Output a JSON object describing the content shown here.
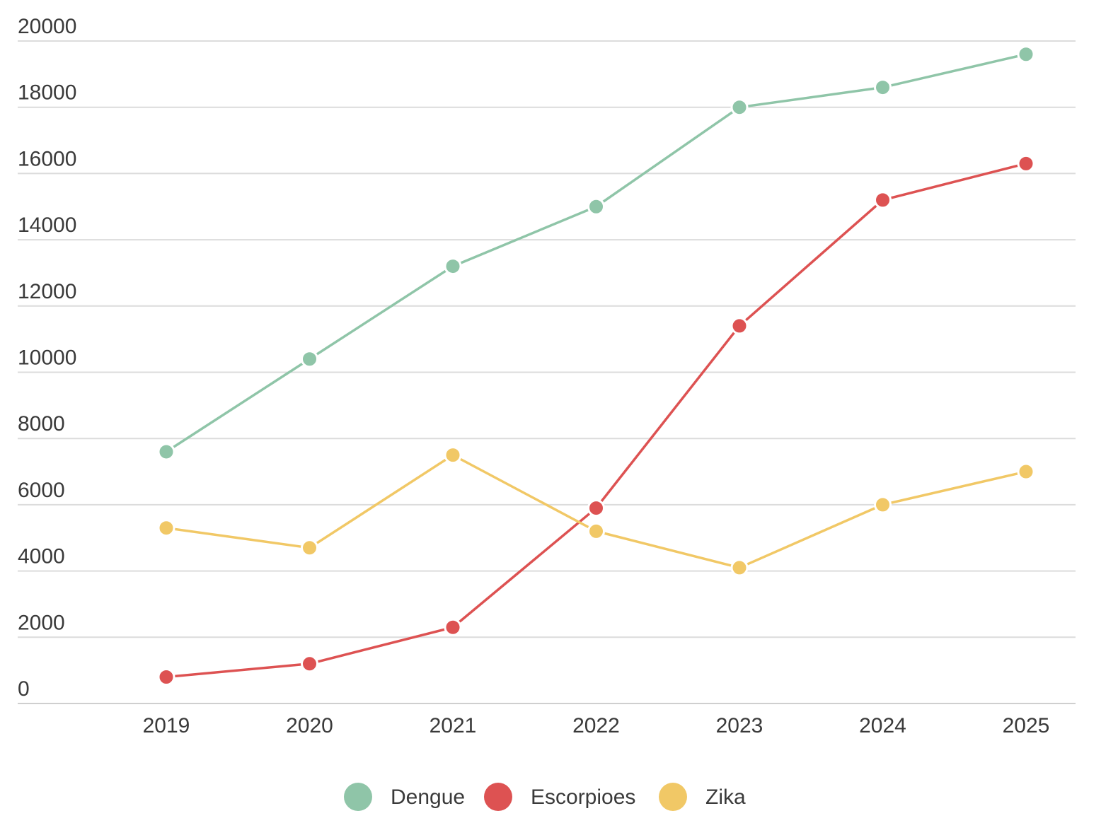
{
  "chart_data": {
    "type": "line",
    "title": "",
    "xlabel": "",
    "ylabel": "",
    "categories": [
      "2019",
      "2020",
      "2021",
      "2022",
      "2023",
      "2024",
      "2025"
    ],
    "y_ticks": [
      "0",
      "2000",
      "4000",
      "6000",
      "8000",
      "10000",
      "12000",
      "14000",
      "16000",
      "18000",
      "20000"
    ],
    "ylim": [
      0,
      20000
    ],
    "grid": true,
    "legend_position": "bottom",
    "series": [
      {
        "name": "Dengue",
        "color": "#8fc5a8",
        "values": [
          7600,
          10400,
          13200,
          15000,
          18000,
          18600,
          19600
        ]
      },
      {
        "name": "Escorpioes",
        "color": "#dd5252",
        "values": [
          800,
          1200,
          2300,
          5900,
          11400,
          15200,
          16300
        ]
      },
      {
        "name": "Zika",
        "color": "#f1c866",
        "values": [
          5300,
          4700,
          7500,
          5200,
          4100,
          6000,
          7000
        ]
      }
    ]
  }
}
